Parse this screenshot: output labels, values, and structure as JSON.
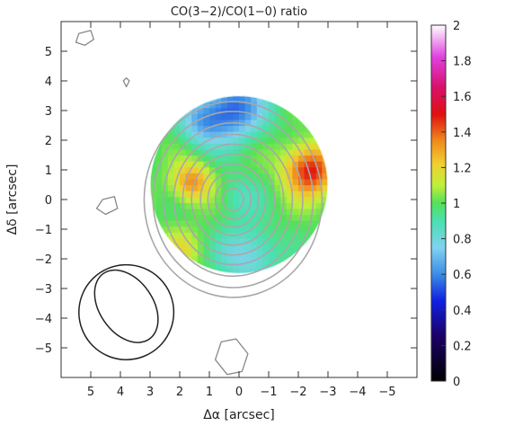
{
  "chart_data": {
    "type": "heatmap",
    "title": "CO(3−2)/CO(1−0) ratio",
    "xlabel": "Δα [arcsec]",
    "ylabel": "Δδ [arcsec]",
    "xlim": [
      6,
      -6
    ],
    "ylim": [
      -6,
      6
    ],
    "xticks": [
      5,
      4,
      3,
      2,
      1,
      0,
      -1,
      -2,
      -3,
      -4,
      -5
    ],
    "yticks": [
      5,
      4,
      3,
      2,
      1,
      0,
      -1,
      -2,
      -3,
      -4,
      -5
    ],
    "xtick_labels": [
      "5",
      "4",
      "3",
      "2",
      "1",
      "0",
      "−1",
      "−2",
      "−3",
      "−4",
      "−5"
    ],
    "ytick_labels": [
      "5",
      "4",
      "3",
      "2",
      "1",
      "0",
      "−1",
      "−2",
      "−3",
      "−4",
      "−5"
    ],
    "colorbar": {
      "range": [
        0,
        2
      ],
      "ticks": [
        0,
        0.2,
        0.4,
        0.6,
        0.8,
        1,
        1.2,
        1.4,
        1.6,
        1.8,
        2
      ],
      "tick_labels": [
        "0",
        "0.2",
        "0.4",
        "0.6",
        "0.8",
        "1",
        "1.2",
        "1.4",
        "1.6",
        "1.8",
        "2"
      ],
      "colormap": [
        {
          "v": 0.0,
          "c": "#000000"
        },
        {
          "v": 0.25,
          "c": "#1a0066"
        },
        {
          "v": 0.45,
          "c": "#1020e0"
        },
        {
          "v": 0.6,
          "c": "#3c8ce6"
        },
        {
          "v": 0.75,
          "c": "#7fd3ef"
        },
        {
          "v": 0.9,
          "c": "#4be0b0"
        },
        {
          "v": 1.0,
          "c": "#55e05a"
        },
        {
          "v": 1.1,
          "c": "#bff03a"
        },
        {
          "v": 1.22,
          "c": "#f0d030"
        },
        {
          "v": 1.35,
          "c": "#f08a1e"
        },
        {
          "v": 1.5,
          "c": "#e01010"
        },
        {
          "v": 1.65,
          "c": "#d8106a"
        },
        {
          "v": 1.82,
          "c": "#e040e0"
        },
        {
          "v": 2.0,
          "c": "#ffffff"
        }
      ]
    },
    "ratio_map": {
      "center": [
        0,
        0.5
      ],
      "radius_arcsec": 3.0,
      "base_ratio": 1.0,
      "features": [
        {
          "name": "low-ratio-north",
          "x": 0.2,
          "y": 3.1,
          "sigma": 0.75,
          "delta": -0.45
        },
        {
          "name": "low-ratio-northeast",
          "x": 1.3,
          "y": 2.6,
          "sigma": 0.55,
          "delta": -0.25
        },
        {
          "name": "high-ratio-west-edge",
          "x": -2.4,
          "y": 1.0,
          "sigma": 0.6,
          "delta": 0.5
        },
        {
          "name": "high-ratio-east-knot",
          "x": 1.6,
          "y": 0.6,
          "sigma": 0.45,
          "delta": 0.35
        },
        {
          "name": "low-ratio-south",
          "x": -0.3,
          "y": -1.9,
          "sigma": 0.7,
          "delta": -0.25
        },
        {
          "name": "low-ratio-center",
          "x": 0.0,
          "y": 0.1,
          "sigma": 0.5,
          "delta": -0.12
        },
        {
          "name": "high-ratio-southeast",
          "x": 2.0,
          "y": -1.7,
          "sigma": 0.5,
          "delta": 0.15
        }
      ]
    },
    "intensity_contours": {
      "center": [
        0.2,
        0.0
      ],
      "radii_arcsec": [
        0.35,
        0.6,
        0.85,
        1.1,
        1.4,
        1.7,
        2.0,
        2.35,
        2.7,
        3.0
      ],
      "axis_ratio": 1.1,
      "color": "#a8a8a8"
    },
    "beams": [
      {
        "name": "outer-beam",
        "center": [
          3.8,
          -3.8
        ],
        "major_arcsec": 1.6,
        "minor_arcsec": 1.6,
        "angle_deg": 0
      },
      {
        "name": "inner-beam",
        "center": [
          3.8,
          -3.6
        ],
        "major_arcsec": 1.35,
        "minor_arcsec": 0.9,
        "angle_deg": -35
      }
    ],
    "noise_blobs": [
      {
        "name": "blob-top-left",
        "points": [
          [
            5.4,
            5.6
          ],
          [
            5.0,
            5.7
          ],
          [
            4.9,
            5.4
          ],
          [
            5.2,
            5.2
          ],
          [
            5.5,
            5.3
          ]
        ]
      },
      {
        "name": "blob-mid-left",
        "points": [
          [
            4.6,
            0.0
          ],
          [
            4.2,
            0.1
          ],
          [
            4.1,
            -0.3
          ],
          [
            4.5,
            -0.5
          ],
          [
            4.8,
            -0.3
          ]
        ]
      },
      {
        "name": "blob-bottom",
        "points": [
          [
            0.6,
            -4.8
          ],
          [
            0.1,
            -4.7
          ],
          [
            -0.3,
            -5.2
          ],
          [
            -0.1,
            -5.8
          ],
          [
            0.4,
            -5.9
          ],
          [
            0.8,
            -5.4
          ]
        ]
      },
      {
        "name": "blob-small",
        "points": [
          [
            3.8,
            4.1
          ],
          [
            3.7,
            4.0
          ],
          [
            3.8,
            3.8
          ],
          [
            3.9,
            4.0
          ]
        ]
      }
    ]
  }
}
